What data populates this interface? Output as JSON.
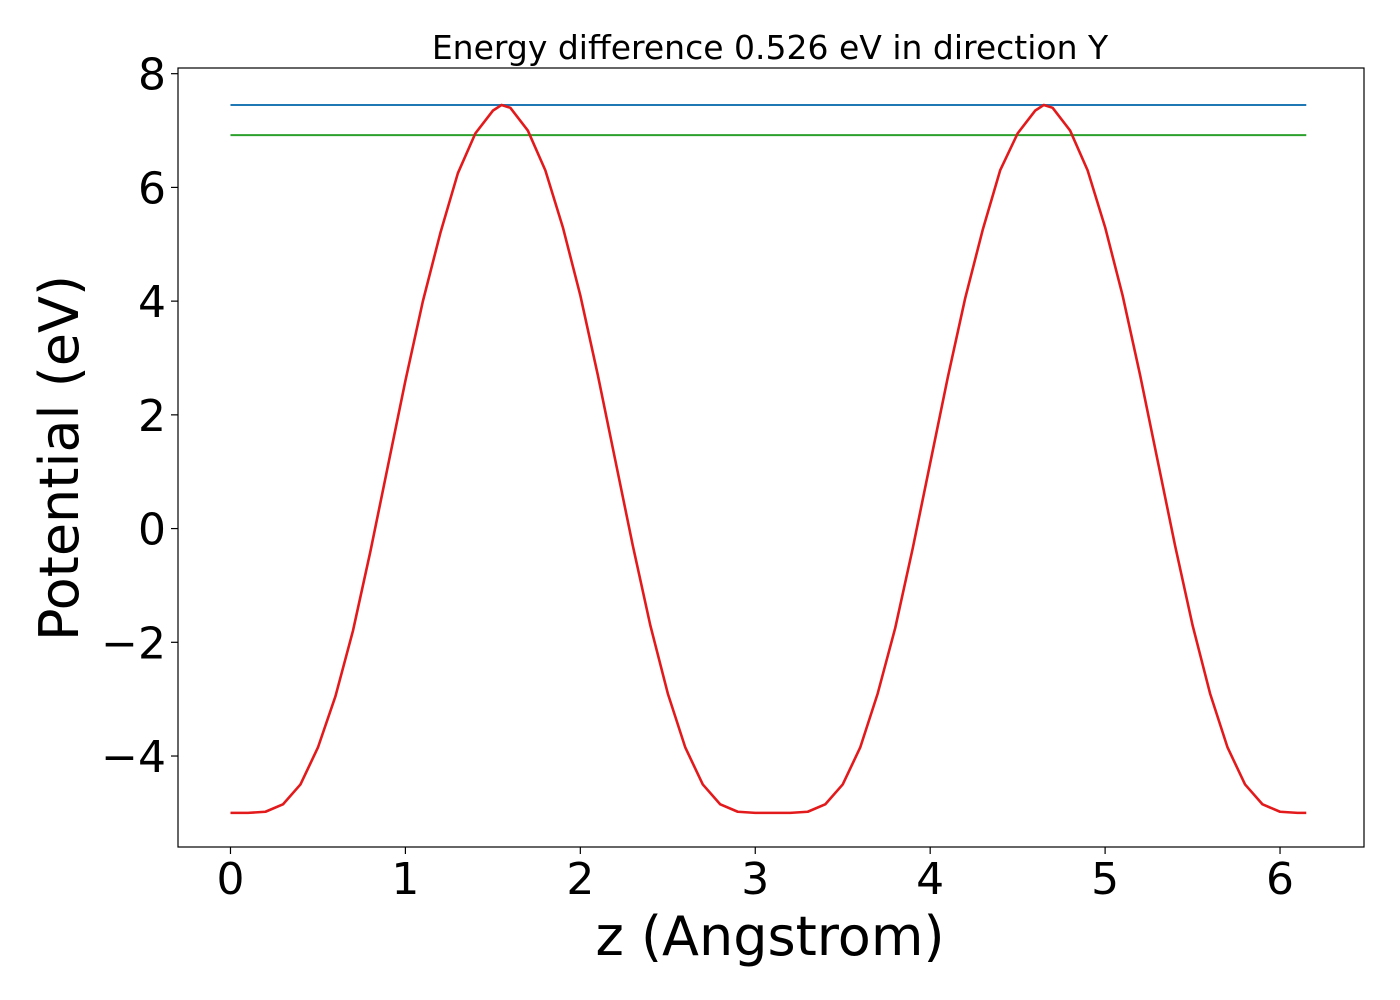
{
  "chart_data": {
    "type": "line",
    "title": "Energy difference 0.526 eV in direction Y",
    "xlabel": "z (Angstrom)",
    "ylabel": "Potential (eV)",
    "xlim": [
      -0.3,
      6.48
    ],
    "ylim": [
      -5.6,
      8.1
    ],
    "xticks": [
      0,
      1,
      2,
      3,
      4,
      5,
      6
    ],
    "xtick_labels": [
      "0",
      "1",
      "2",
      "3",
      "4",
      "5",
      "6"
    ],
    "yticks": [
      -4,
      -2,
      0,
      2,
      4,
      6,
      8
    ],
    "ytick_labels": [
      "−4",
      "−2",
      "0",
      "2",
      "4",
      "6",
      "8"
    ],
    "grid": false,
    "legend": "none",
    "series": [
      {
        "color": "#1f77b4",
        "kind": "hline",
        "value": 7.45,
        "x_range": [
          0,
          6.15
        ]
      },
      {
        "color": "#2ca02c",
        "kind": "hline",
        "value": 6.92,
        "x_range": [
          0,
          6.15
        ]
      },
      {
        "color": "#e31a1c",
        "kind": "line",
        "x": [
          0,
          0.1,
          0.2,
          0.3,
          0.4,
          0.5,
          0.6,
          0.7,
          0.8,
          0.9,
          1.0,
          1.1,
          1.2,
          1.3,
          1.4,
          1.5,
          1.55,
          1.6,
          1.7,
          1.8,
          1.9,
          2.0,
          2.1,
          2.2,
          2.3,
          2.4,
          2.5,
          2.6,
          2.7,
          2.8,
          2.9,
          3.0,
          3.1,
          3.2,
          3.3,
          3.4,
          3.5,
          3.6,
          3.7,
          3.8,
          3.9,
          4.0,
          4.1,
          4.2,
          4.3,
          4.4,
          4.5,
          4.6,
          4.65,
          4.7,
          4.8,
          4.9,
          5.0,
          5.1,
          5.2,
          5.3,
          5.4,
          5.5,
          5.6,
          5.7,
          5.8,
          5.9,
          6.0,
          6.1,
          6.15
        ],
        "y": [
          -5.0,
          -5.0,
          -4.98,
          -4.85,
          -4.5,
          -3.85,
          -2.95,
          -1.8,
          -0.4,
          1.1,
          2.6,
          4.0,
          5.2,
          6.25,
          6.95,
          7.35,
          7.45,
          7.4,
          7.0,
          6.3,
          5.3,
          4.1,
          2.7,
          1.2,
          -0.3,
          -1.7,
          -2.9,
          -3.85,
          -4.5,
          -4.85,
          -4.98,
          -5.0,
          -5.0,
          -5.0,
          -4.98,
          -4.85,
          -4.5,
          -3.85,
          -2.9,
          -1.75,
          -0.35,
          1.15,
          2.65,
          4.05,
          5.25,
          6.3,
          6.95,
          7.35,
          7.45,
          7.4,
          7.0,
          6.3,
          5.3,
          4.1,
          2.7,
          1.2,
          -0.3,
          -1.7,
          -2.9,
          -3.85,
          -4.5,
          -4.85,
          -4.98,
          -5.0,
          -5.0
        ]
      }
    ]
  }
}
